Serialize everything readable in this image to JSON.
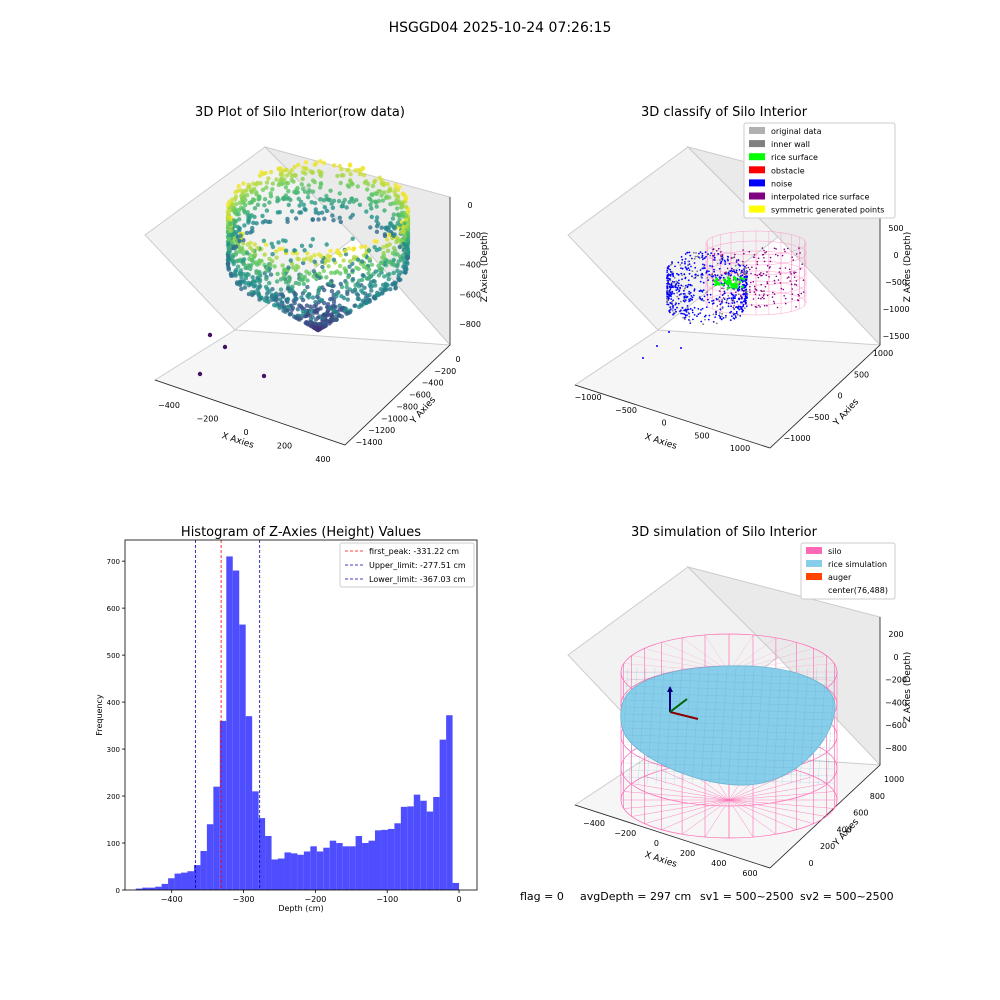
{
  "figure": {
    "suptitle": "HSGGD04 2025-10-24 07:26:15",
    "footer": {
      "flag": "flag = 0",
      "avg": "avgDepth = 297 cm",
      "sv1": "sv1 = 500~2500",
      "sv2": "sv2 = 500~2500"
    }
  },
  "chart_data": [
    {
      "type": "scatter",
      "title": "3D Plot of Silo Interior(row data)",
      "xlabel": "X Axies",
      "ylabel": "Y Axies",
      "zlabel": "Z Axies (Depth)",
      "x_ticks": [
        "−400",
        "−200",
        "0",
        "200",
        "400"
      ],
      "y_ticks": [
        "−1400",
        "−1200",
        "−1000",
        "−800",
        "−600",
        "−400",
        "−200",
        "0"
      ],
      "z_ticks": [
        "0",
        "−200",
        "−400",
        "−600",
        "−800"
      ],
      "colormap": "viridis",
      "colors": [
        "#440154",
        "#3b528b",
        "#21918c",
        "#5ec962",
        "#fde725"
      ]
    },
    {
      "type": "scatter",
      "title": "3D classify of Silo Interior",
      "xlabel": "X Axies",
      "ylabel": "Y Axies",
      "zlabel": "Z Axies (Depth)",
      "x_ticks": [
        "−1000",
        "−500",
        "0",
        "500",
        "1000"
      ],
      "y_ticks": [
        "−1000",
        "−500",
        "0",
        "500",
        "1000"
      ],
      "z_ticks": [
        "500",
        "0",
        "−500",
        "−1000",
        "−1500"
      ],
      "legend": [
        {
          "label": "original data",
          "color": "#b0b0b0"
        },
        {
          "label": "inner wall",
          "color": "#808080"
        },
        {
          "label": "rice surface",
          "color": "#00ff00"
        },
        {
          "label": "obstacle",
          "color": "#ff0000"
        },
        {
          "label": "noise",
          "color": "#0000ff"
        },
        {
          "label": "interpolated rice surface",
          "color": "#800080"
        },
        {
          "label": "symmetric generated points",
          "color": "#ffff00"
        }
      ],
      "legend_position": "top-right"
    },
    {
      "type": "bar",
      "title": "Histogram of Z-Axies (Height) Values",
      "xlabel": "Depth (cm)",
      "ylabel": "Frequency",
      "xlim": [
        -465,
        25
      ],
      "ylim": [
        0,
        745
      ],
      "x_ticks": [
        -400,
        -300,
        -200,
        -100,
        0
      ],
      "y_ticks": [
        0,
        100,
        200,
        300,
        400,
        500,
        600,
        700
      ],
      "bar_color": "#4444ff",
      "bin_width": 9,
      "bin_start": -450,
      "values": [
        3,
        5,
        5,
        7,
        13,
        25,
        35,
        37,
        40,
        53,
        83,
        140,
        220,
        360,
        710,
        680,
        565,
        370,
        210,
        153,
        115,
        65,
        67,
        80,
        78,
        75,
        82,
        93,
        82,
        90,
        105,
        100,
        93,
        93,
        115,
        100,
        105,
        127,
        128,
        130,
        142,
        177,
        178,
        203,
        190,
        167,
        198,
        320,
        372,
        15
      ],
      "vlines": [
        {
          "label": "first_peak: -331.22 cm",
          "value": -331.22,
          "color": "#ff0000"
        },
        {
          "label": "Upper_limit: -277.51 cm",
          "value": -277.51,
          "color": "#0000aa"
        },
        {
          "label": "Lower_limit: -367.03 cm",
          "value": -367.03,
          "color": "#0000aa"
        }
      ],
      "legend_position": "top-right"
    },
    {
      "type": "scatter",
      "title": "3D simulation of Silo Interior",
      "xlabel": "X Axies",
      "ylabel": "Y Axies",
      "zlabel": "Z Axies (Depth)",
      "x_ticks": [
        "−400",
        "−200",
        "0",
        "200",
        "400",
        "600"
      ],
      "y_ticks": [
        "0",
        "200",
        "400",
        "600",
        "800",
        "1000"
      ],
      "z_ticks": [
        "200",
        "0",
        "−200",
        "−400",
        "−600",
        "−800"
      ],
      "legend": [
        {
          "label": "silo",
          "color": "#ff69b4"
        },
        {
          "label": "rice simulation",
          "color": "#87ceeb"
        },
        {
          "label": "auger",
          "color": "#ff4500"
        },
        {
          "label": "center(76,488)",
          "color": ""
        }
      ],
      "legend_position": "top-right"
    }
  ]
}
